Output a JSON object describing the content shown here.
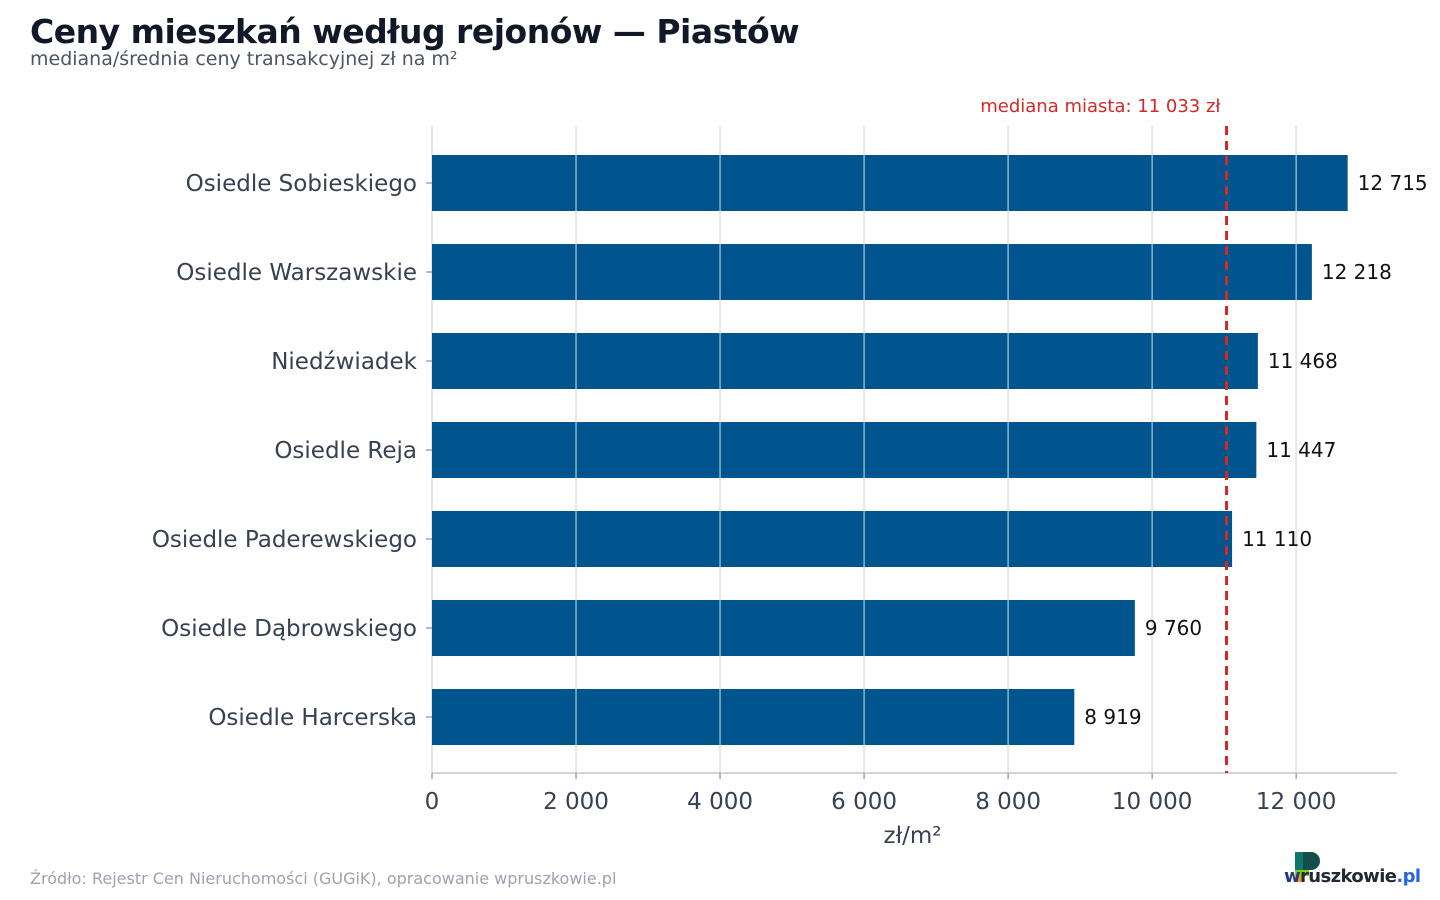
{
  "title": "Ceny mieszkań według rejonów — Piastów",
  "subtitle": "mediana/średnia ceny transakcyjnej zł na m²",
  "source": "Źródło: Rejestr Cen Nieruchomości (GUGiK), opracowanie wpruszkowie.pl",
  "logo": {
    "prefix": "w",
    "rest": "ruszkowie",
    "suffix": ".pl"
  },
  "colors": {
    "bar": "#00558f",
    "median": "#d62728",
    "grid": "#e5e7eb"
  },
  "chart_data": {
    "type": "bar",
    "orientation": "horizontal",
    "categories": [
      "Osiedle Sobieskiego",
      "Osiedle Warszawskie",
      "Niedźwiadek",
      "Osiedle Reja",
      "Osiedle Paderewskiego",
      "Osiedle Dąbrowskiego",
      "Osiedle Harcerska"
    ],
    "values": [
      12715,
      12218,
      11468,
      11447,
      11110,
      9760,
      8919
    ],
    "value_labels": [
      "12 715",
      "12 218",
      "11 468",
      "11 447",
      "11 110",
      "9 760",
      "8 919"
    ],
    "xlabel": "zł/m²",
    "xlim": [
      0,
      13400
    ],
    "xticks": [
      0,
      2000,
      4000,
      6000,
      8000,
      10000,
      12000
    ],
    "xtick_labels": [
      "0",
      "2 000",
      "4 000",
      "6 000",
      "8 000",
      "10 000",
      "12 000"
    ],
    "grid": true,
    "reference_line": {
      "value": 11033,
      "label": "mediana miasta: 11 033 zł",
      "style": "dashed"
    }
  }
}
